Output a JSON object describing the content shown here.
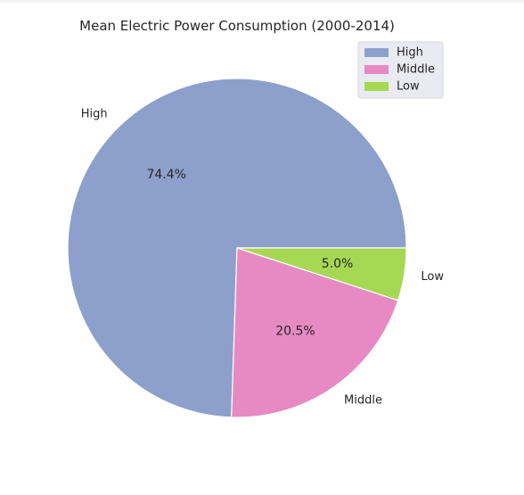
{
  "chart_data": {
    "type": "pie",
    "title": "Mean Electric Power Consumption (2000-2014)",
    "categories": [
      "High",
      "Middle",
      "Low"
    ],
    "values": [
      74.4,
      20.5,
      5.0
    ],
    "percent_labels": [
      "74.4%",
      "20.5%",
      "5.0%"
    ],
    "colors": [
      "#8da0cb",
      "#e78ac3",
      "#a6d854"
    ],
    "start_angle_deg": 0,
    "direction": "counterclockwise",
    "legend": {
      "placement": "top-right",
      "entries": [
        "High",
        "Middle",
        "Low"
      ]
    }
  }
}
